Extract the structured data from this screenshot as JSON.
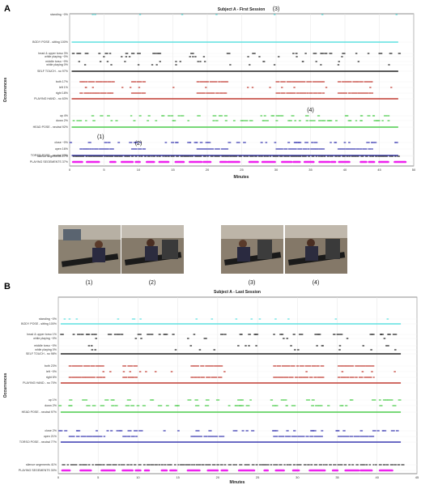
{
  "panel_labels": [
    "A",
    "B"
  ],
  "photo_captions": [
    "(1)",
    "(2)",
    "(3)",
    "(4)"
  ],
  "colors": {
    "body": "#5fe0e0",
    "touch": "#222222",
    "hand": "#c03a30",
    "head": "#4ccc4c",
    "torso": "#3a3ab0",
    "playing": "#ee22ee",
    "silence": "#333333"
  },
  "chart_data": [
    {
      "type": "scatter",
      "title": "Subject A - First Session",
      "xlabel": "Minutes",
      "ylabel": "Occurrences",
      "xlim": [
        0,
        50
      ],
      "xticks": [
        0,
        5,
        10,
        15,
        20,
        25,
        30,
        35,
        40,
        45,
        50
      ],
      "grid": true,
      "rows": [
        {
          "label": "standing ~0%",
          "group": "body"
        },
        {
          "label": "BODY POSE - sitting 100%",
          "group": "body"
        },
        {
          "label": "head & upper torso 3%",
          "group": "touch"
        },
        {
          "label": "while playing ~0%",
          "group": "touch"
        },
        {
          "label": "middle torso ~0%",
          "group": "touch"
        },
        {
          "label": "while playing 0%",
          "group": "touch"
        },
        {
          "label": "SELF TOUCH - no 97%",
          "group": "touch"
        },
        {
          "label": "both 17%",
          "group": "hand"
        },
        {
          "label": "left 1%",
          "group": "hand"
        },
        {
          "label": "right 18%",
          "group": "hand"
        },
        {
          "label": "PLAYING HAND - no 63%",
          "group": "hand"
        },
        {
          "label": "up 4%",
          "group": "head"
        },
        {
          "label": "down 2%",
          "group": "head"
        },
        {
          "label": "HEAD POSE - neutral 92%",
          "group": "head"
        },
        {
          "label": "close ~0%",
          "group": "torso"
        },
        {
          "label": "open 16%",
          "group": "torso"
        },
        {
          "label": "TORSO POSE - neutral 83%",
          "group": "torso"
        },
        {
          "label": "silence segements 17%",
          "group": "silence"
        },
        {
          "label": "PLAYING SEGEMENTS 37%",
          "group": "playing"
        }
      ],
      "annotations": [
        {
          "text": "(3)",
          "x": 30,
          "row": 0
        },
        {
          "text": "(4)",
          "x": 35,
          "row": 11
        },
        {
          "text": "(1)",
          "x": 4.5,
          "row": 14
        },
        {
          "text": "(2)",
          "x": 10,
          "row": 15
        }
      ]
    },
    {
      "type": "scatter",
      "title": "Subject A - Last Session",
      "xlabel": "Minutes",
      "ylabel": "Occurrences",
      "xlim": [
        0,
        45
      ],
      "xticks": [
        0,
        5,
        10,
        15,
        20,
        25,
        30,
        35,
        40,
        45
      ],
      "grid": true,
      "rows": [
        {
          "label": "standing ~0%",
          "group": "body"
        },
        {
          "label": "BODY POSE - sitting 100%",
          "group": "body"
        },
        {
          "label": "head & upper torso 1%",
          "group": "touch"
        },
        {
          "label": "while playing ~0%",
          "group": "touch"
        },
        {
          "label": "middle torso ~0%",
          "group": "touch"
        },
        {
          "label": "while playing 0%",
          "group": "touch"
        },
        {
          "label": "SELF TOUCH - no 98%",
          "group": "touch"
        },
        {
          "label": "both 23%",
          "group": "hand"
        },
        {
          "label": "left ~0%",
          "group": "hand"
        },
        {
          "label": "right 6%",
          "group": "hand"
        },
        {
          "label": "PLAYING HAND - no 70%",
          "group": "hand"
        },
        {
          "label": "up 1%",
          "group": "head"
        },
        {
          "label": "down 2%",
          "group": "head"
        },
        {
          "label": "HEAD POSE - neutral 97%",
          "group": "head"
        },
        {
          "label": "close 2%",
          "group": "torso"
        },
        {
          "label": "open 21%",
          "group": "torso"
        },
        {
          "label": "TORSO POSE - neutral 77%",
          "group": "torso"
        },
        {
          "label": "silence segements 41%",
          "group": "silence"
        },
        {
          "label": "PLAYING SEGEMENTS 30%",
          "group": "playing"
        }
      ],
      "annotations": []
    }
  ]
}
